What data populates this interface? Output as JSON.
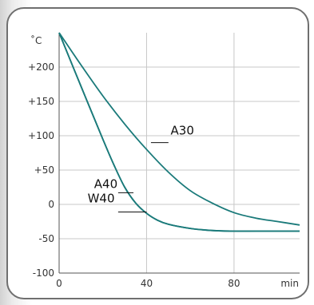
{
  "chart_data": {
    "type": "line",
    "ylabel": "˚C",
    "xlabel": "min",
    "xlim": [
      0,
      110
    ],
    "ylim": [
      -100,
      250
    ],
    "grid": true,
    "x_ticks": [
      {
        "value": 0,
        "label": "0"
      },
      {
        "value": 40,
        "label": "40"
      },
      {
        "value": 80,
        "label": "80"
      }
    ],
    "y_ticks": [
      {
        "value": 200,
        "label": "+200"
      },
      {
        "value": 150,
        "label": "+150"
      },
      {
        "value": 100,
        "label": "+100"
      },
      {
        "value": 50,
        "label": "+50"
      },
      {
        "value": 0,
        "label": "0"
      },
      {
        "value": -50,
        "label": "-50"
      },
      {
        "value": -100,
        "label": "-100"
      }
    ],
    "line_color": "#1a7a7a",
    "grid_color": "#c8c8c8",
    "series": [
      {
        "name": "A30",
        "x": [
          0,
          10,
          20,
          30,
          40,
          50,
          60,
          70,
          80,
          90,
          100,
          110
        ],
        "y": [
          250,
          203,
          158,
          117,
          80,
          47,
          20,
          2,
          -12,
          -20,
          -25,
          -30
        ]
      },
      {
        "name": "A40",
        "x": [
          0,
          10,
          20,
          25,
          30,
          35,
          40,
          45,
          50,
          60,
          70,
          80,
          90,
          110
        ],
        "y": [
          250,
          172,
          95,
          58,
          25,
          2,
          -13,
          -23,
          -29,
          -35,
          -38,
          -39,
          -39,
          -39
        ]
      },
      {
        "name": "W40",
        "x": [
          0,
          10,
          20,
          25,
          30,
          35,
          40,
          45,
          50,
          60,
          70,
          80,
          90,
          110
        ],
        "y": [
          250,
          172,
          95,
          58,
          25,
          2,
          -13,
          -23,
          -29,
          -35,
          -38,
          -39,
          -39,
          -39
        ]
      }
    ],
    "annotations": [
      {
        "text": "A30",
        "x": 51,
        "y": 102,
        "leader_x": [
          42,
          50
        ],
        "leader_y": 90
      },
      {
        "text": "A40",
        "x": 16,
        "y": 24,
        "leader_x": [
          27,
          34
        ],
        "leader_y": 17
      },
      {
        "text": "W40",
        "x": 13,
        "y": 3,
        "leader_x": [
          27,
          40
        ],
        "leader_y": -11
      }
    ]
  }
}
